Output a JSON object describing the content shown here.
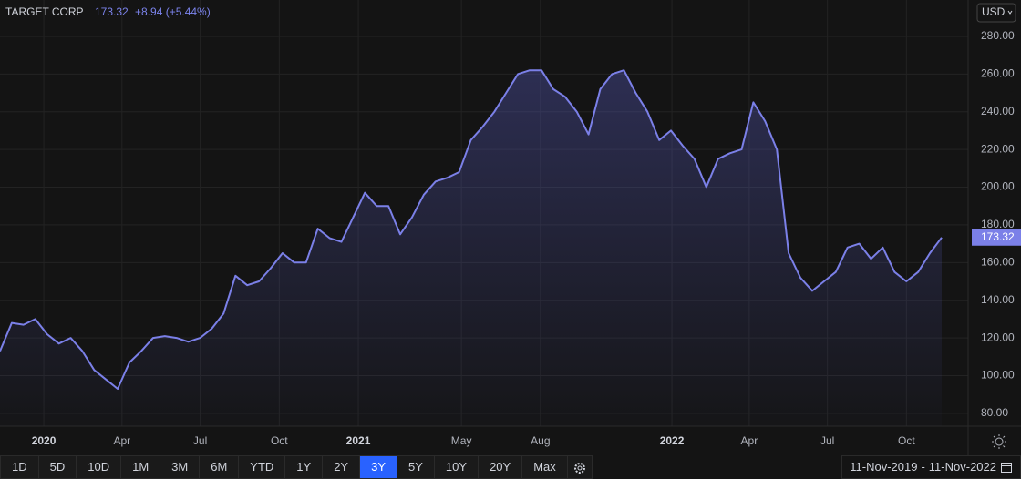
{
  "chart_data": {
    "type": "line",
    "title": "TARGET CORP",
    "last_price": "173.32",
    "change": "+8.94 (+5.44%)",
    "currency": "USD",
    "range_start": "11-Nov-2019",
    "range_end": "11-Nov-2022",
    "color": "#7b80e8",
    "grid": true,
    "ylim": [
      73.2,
      299.3
    ],
    "yticks": [
      {
        "value": 80,
        "label": "80.00"
      },
      {
        "value": 100,
        "label": "100.00"
      },
      {
        "value": 120,
        "label": "120.00"
      },
      {
        "value": 140,
        "label": "140.00"
      },
      {
        "value": 160,
        "label": "160.00"
      },
      {
        "value": 180,
        "label": "180.00"
      },
      {
        "value": 200,
        "label": "200.00"
      },
      {
        "value": 220,
        "label": "220.00"
      },
      {
        "value": 240,
        "label": "240.00"
      },
      {
        "value": 260,
        "label": "260.00"
      },
      {
        "value": 280,
        "label": "280.00"
      }
    ],
    "xticks": [
      {
        "value": "2020-01",
        "label": "2020"
      },
      {
        "value": "2020-04",
        "label": "Apr"
      },
      {
        "value": "2020-07",
        "label": "Jul"
      },
      {
        "value": "2020-10",
        "label": "Oct"
      },
      {
        "value": "2021-01",
        "label": "2021"
      },
      {
        "value": "2021-05",
        "label": "May"
      },
      {
        "value": "2021-08",
        "label": "Aug"
      },
      {
        "value": "2022-01",
        "label": "2022"
      },
      {
        "value": "2022-04",
        "label": "Apr"
      },
      {
        "value": "2022-07",
        "label": "Jul"
      },
      {
        "value": "2022-10",
        "label": "Oct"
      }
    ],
    "values": [
      113,
      128,
      127,
      130,
      122,
      117,
      120,
      113,
      103,
      98,
      93,
      107,
      113,
      120,
      121,
      120,
      118,
      120,
      125,
      133,
      153,
      148,
      150,
      157,
      165,
      160,
      160,
      178,
      173,
      171,
      184,
      197,
      190,
      190,
      175,
      184,
      196,
      203,
      205,
      208,
      225,
      232,
      240,
      250,
      260,
      262,
      262,
      252,
      248,
      240,
      228,
      252,
      260,
      262,
      250,
      240,
      225,
      230,
      222,
      215,
      200,
      215,
      218,
      220,
      245,
      235,
      220,
      165,
      152,
      145,
      150,
      155,
      168,
      170,
      162,
      168,
      155,
      150,
      155,
      165,
      173.32
    ]
  },
  "toolbar": {
    "ranges": [
      "1D",
      "5D",
      "10D",
      "1M",
      "3M",
      "6M",
      "YTD",
      "1Y",
      "2Y",
      "3Y",
      "5Y",
      "10Y",
      "20Y",
      "Max"
    ],
    "selected": "3Y"
  }
}
